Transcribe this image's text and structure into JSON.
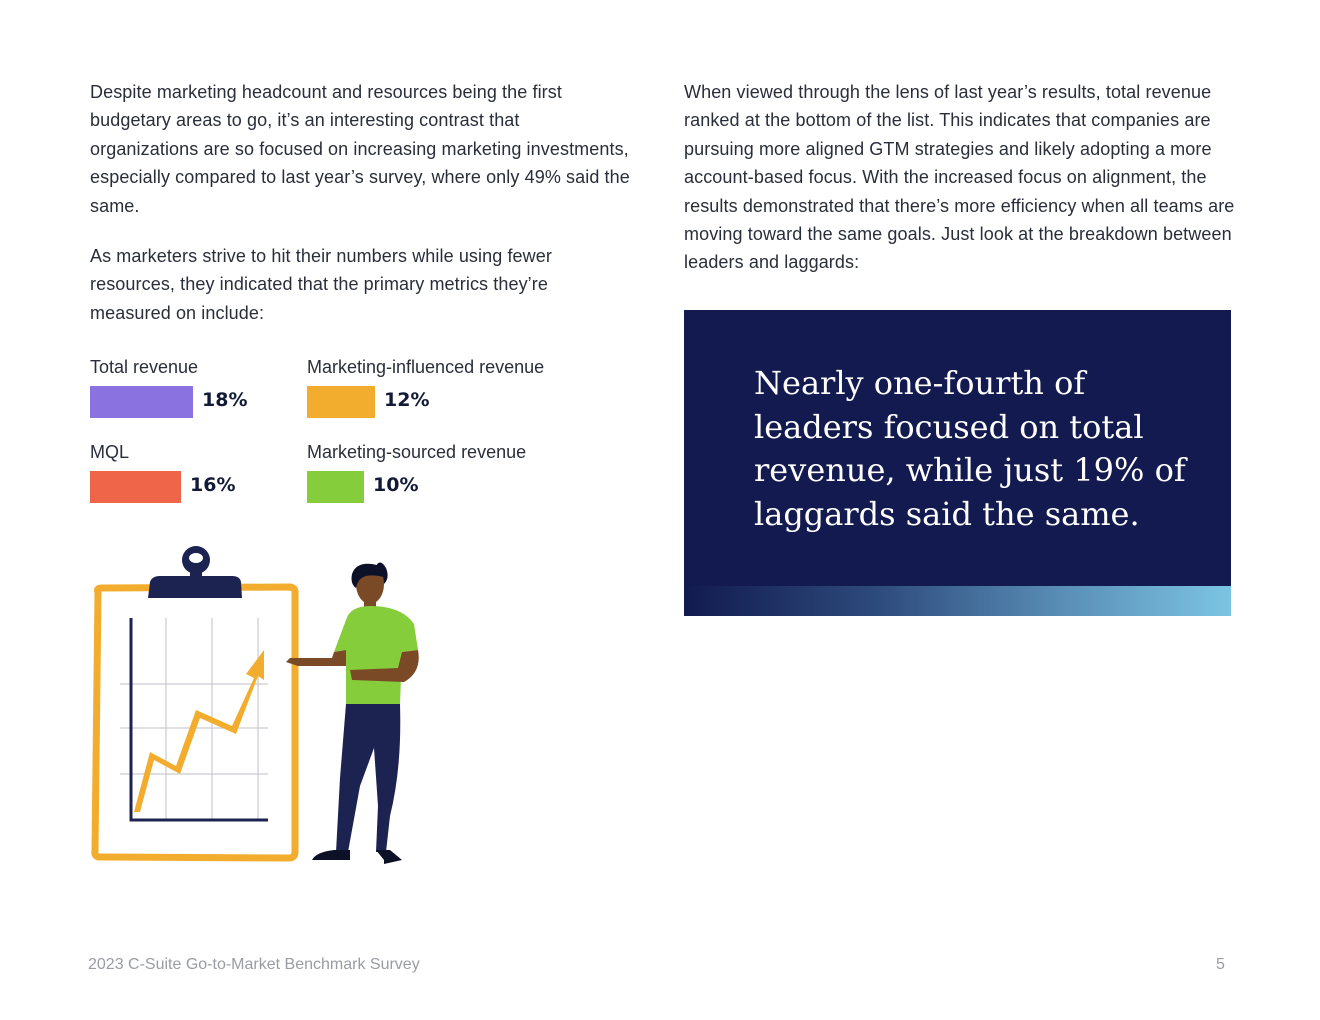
{
  "left_column": {
    "paragraph_1": "Despite marketing headcount and resources being the first budgetary areas to go, it’s an interesting contrast that organizations are so focused on increasing marketing investments, especially compared to last year’s survey, where only 49% said the same.",
    "paragraph_2": "As marketers strive to hit their numbers while using fewer resources, they indicated that the primary metrics they’re measured on include:"
  },
  "metrics": [
    {
      "label": "Total revenue",
      "value": 18,
      "value_label": "18%",
      "color": "#8a72e0"
    },
    {
      "label": "Marketing-influenced revenue",
      "value": 12,
      "value_label": "12%",
      "color": "#f2ad2e"
    },
    {
      "label": "MQL",
      "value": 16,
      "value_label": "16%",
      "color": "#ef6549"
    },
    {
      "label": "Marketing-sourced revenue",
      "value": 10,
      "value_label": "10%",
      "color": "#86cd3b"
    }
  ],
  "right_column": {
    "paragraph_1": "When viewed through the lens of last year’s results, total revenue ranked at the bottom of the list. This indicates that companies are pursuing more aligned GTM strategies and likely adopting a more account-based focus. With the increased focus on alignment, the results demonstrated that there’s more efficiency when all teams are moving toward the same goals. Just look at the breakdown between leaders and laggards:"
  },
  "quote": {
    "text": "Nearly one-fourth of leaders focused on total revenue, while just 19% of laggards said the same."
  },
  "footer": {
    "title": "2023 C-Suite Go-to-Market Benchmark Survey",
    "page_number": "5"
  },
  "colors": {
    "navy": "#121a4f",
    "clipboard": "#f2ad2e",
    "shirt": "#86cd3b",
    "pants": "#1c2350"
  }
}
